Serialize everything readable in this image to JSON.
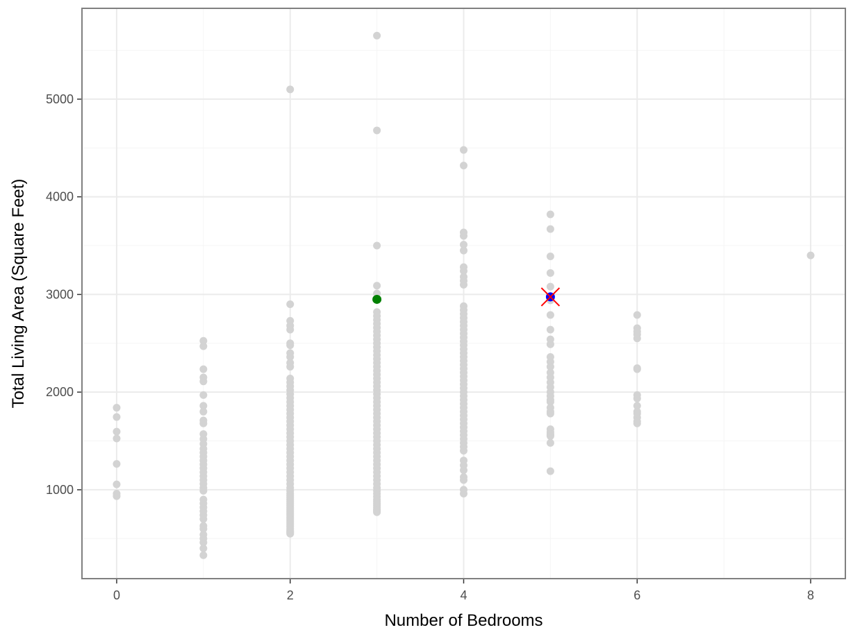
{
  "chart_data": {
    "type": "scatter",
    "title": "",
    "xlabel": "Number of Bedrooms",
    "ylabel": "Total Living Area (Square Feet)",
    "xlim": [
      -0.4,
      8.4
    ],
    "ylim": [
      90,
      5930
    ],
    "x_ticks": [
      0,
      2,
      4,
      6,
      8
    ],
    "y_ticks": [
      1000,
      2000,
      3000,
      4000,
      5000
    ],
    "grid": true,
    "legend": "none",
    "colors": {
      "points": "#d3d3d3",
      "highlight_green": "#008000",
      "highlight_blue": "#0000ff",
      "marker_x": "#ff0000",
      "panel_border": "#7f7f7f",
      "grid_major": "#ebebeb",
      "grid_minor": "#f5f5f5"
    },
    "series": [
      {
        "x": [
          0,
          0,
          0,
          0,
          0,
          0,
          0,
          0
        ],
        "y": [
          1840,
          1745,
          1595,
          1525,
          1265,
          1055,
          960,
          935
        ]
      },
      {
        "x": [
          1,
          1,
          1,
          1,
          1,
          1,
          1,
          1,
          1,
          1,
          1,
          1,
          1,
          1,
          1,
          1,
          1,
          1,
          1,
          1,
          1,
          1,
          1,
          1,
          1,
          1,
          1,
          1,
          1,
          1,
          1,
          1,
          1,
          1,
          1,
          1,
          1,
          1
        ],
        "y": [
          2525,
          2470,
          2235,
          2150,
          2110,
          1970,
          1860,
          1800,
          1710,
          1680,
          1570,
          1520,
          1470,
          1420,
          1380,
          1340,
          1300,
          1260,
          1220,
          1180,
          1140,
          1100,
          1060,
          1020,
          990,
          900,
          860,
          820,
          780,
          740,
          700,
          630,
          600,
          540,
          500,
          460,
          400,
          330
        ]
      },
      {
        "x": [
          2,
          2,
          2,
          2,
          2,
          2,
          2,
          2,
          2,
          2,
          2,
          2,
          2,
          2,
          2,
          2,
          2,
          2,
          2,
          2,
          2,
          2,
          2,
          2,
          2,
          2,
          2,
          2,
          2,
          2,
          2,
          2,
          2,
          2,
          2,
          2,
          2,
          2,
          2,
          2,
          2,
          2,
          2,
          2,
          2,
          2,
          2,
          2,
          2,
          2,
          2,
          2,
          2,
          2,
          2,
          2,
          2,
          2,
          2,
          2,
          2,
          2,
          2,
          2
        ],
        "y": [
          5100,
          2900,
          2730,
          2680,
          2640,
          2500,
          2480,
          2400,
          2360,
          2300,
          2260,
          2140,
          2100,
          2060,
          2020,
          1980,
          1940,
          1900,
          1860,
          1820,
          1780,
          1740,
          1700,
          1660,
          1620,
          1580,
          1540,
          1500,
          1460,
          1420,
          1380,
          1340,
          1300,
          1260,
          1220,
          1180,
          1140,
          1100,
          1060,
          1020,
          990,
          960,
          940,
          920,
          900,
          880,
          860,
          840,
          820,
          800,
          780,
          760,
          740,
          720,
          700,
          680,
          660,
          640,
          620,
          600,
          580,
          570,
          560,
          550
        ]
      },
      {
        "x": [
          3,
          3,
          3,
          3,
          3,
          3,
          3,
          3,
          3,
          3,
          3,
          3,
          3,
          3,
          3,
          3,
          3,
          3,
          3,
          3,
          3,
          3,
          3,
          3,
          3,
          3,
          3,
          3,
          3,
          3,
          3,
          3,
          3,
          3,
          3,
          3,
          3,
          3,
          3,
          3,
          3,
          3,
          3,
          3,
          3,
          3,
          3,
          3,
          3,
          3,
          3,
          3,
          3,
          3,
          3,
          3,
          3,
          3,
          3,
          3,
          3,
          3,
          3
        ],
        "y": [
          5650,
          4680,
          3500,
          3090,
          3010,
          2820,
          2780,
          2740,
          2700,
          2660,
          2620,
          2580,
          2540,
          2500,
          2460,
          2420,
          2380,
          2340,
          2300,
          2260,
          2220,
          2180,
          2140,
          2100,
          2060,
          2020,
          1980,
          1940,
          1900,
          1860,
          1820,
          1780,
          1740,
          1700,
          1660,
          1620,
          1580,
          1540,
          1500,
          1460,
          1420,
          1380,
          1340,
          1300,
          1260,
          1220,
          1180,
          1140,
          1100,
          1060,
          1020,
          990,
          960,
          930,
          900,
          880,
          860,
          840,
          820,
          800,
          790,
          780,
          770
        ]
      },
      {
        "x": [
          4,
          4,
          4,
          4,
          4,
          4,
          4,
          4,
          4,
          4,
          4,
          4,
          4,
          4,
          4,
          4,
          4,
          4,
          4,
          4,
          4,
          4,
          4,
          4,
          4,
          4,
          4,
          4,
          4,
          4,
          4,
          4,
          4,
          4,
          4,
          4,
          4,
          4,
          4,
          4,
          4,
          4,
          4,
          4,
          4,
          4,
          4,
          4,
          4,
          4,
          4,
          4,
          4,
          4,
          4,
          4
        ],
        "y": [
          4480,
          4320,
          3635,
          3600,
          3510,
          3450,
          3280,
          3240,
          3180,
          3140,
          3100,
          2880,
          2840,
          2800,
          2760,
          2720,
          2680,
          2640,
          2600,
          2560,
          2520,
          2480,
          2440,
          2400,
          2360,
          2320,
          2280,
          2240,
          2200,
          2160,
          2120,
          2080,
          2040,
          2000,
          1960,
          1920,
          1880,
          1840,
          1800,
          1760,
          1720,
          1680,
          1640,
          1600,
          1560,
          1520,
          1480,
          1440,
          1400,
          1300,
          1250,
          1200,
          1130,
          1100,
          1000,
          960
        ]
      },
      {
        "x": [
          5,
          5,
          5,
          5,
          5,
          5,
          5,
          5,
          5,
          5,
          5,
          5,
          5,
          5,
          5,
          5,
          5,
          5,
          5,
          5,
          5,
          5,
          5,
          5,
          5,
          5,
          5,
          5,
          5,
          5,
          5
        ],
        "y": [
          3820,
          3670,
          3390,
          3220,
          3080,
          2940,
          2790,
          2640,
          2540,
          2490,
          2360,
          2310,
          2260,
          2200,
          2150,
          2100,
          2050,
          2000,
          1960,
          1920,
          1900,
          1840,
          1800,
          1780,
          1620,
          1590,
          1570,
          1560,
          1550,
          1480,
          1190
        ]
      },
      {
        "x": [
          6,
          6,
          6,
          6,
          6,
          6,
          6,
          6,
          6,
          6,
          6,
          6,
          6,
          6,
          6
        ],
        "y": [
          2790,
          2655,
          2620,
          2590,
          2550,
          2245,
          2235,
          1970,
          1935,
          1860,
          1800,
          1780,
          1740,
          1700,
          1680
        ]
      },
      {
        "x": [
          8
        ],
        "y": [
          3400
        ]
      }
    ],
    "highlights": [
      {
        "x": 3,
        "y": 2950,
        "color": "#008000",
        "marker": "circle"
      },
      {
        "x": 5,
        "y": 2975,
        "color": "#0000ff",
        "marker": "circle"
      },
      {
        "x": 5,
        "y": 2975,
        "color": "#ff0000",
        "marker": "x"
      }
    ]
  }
}
